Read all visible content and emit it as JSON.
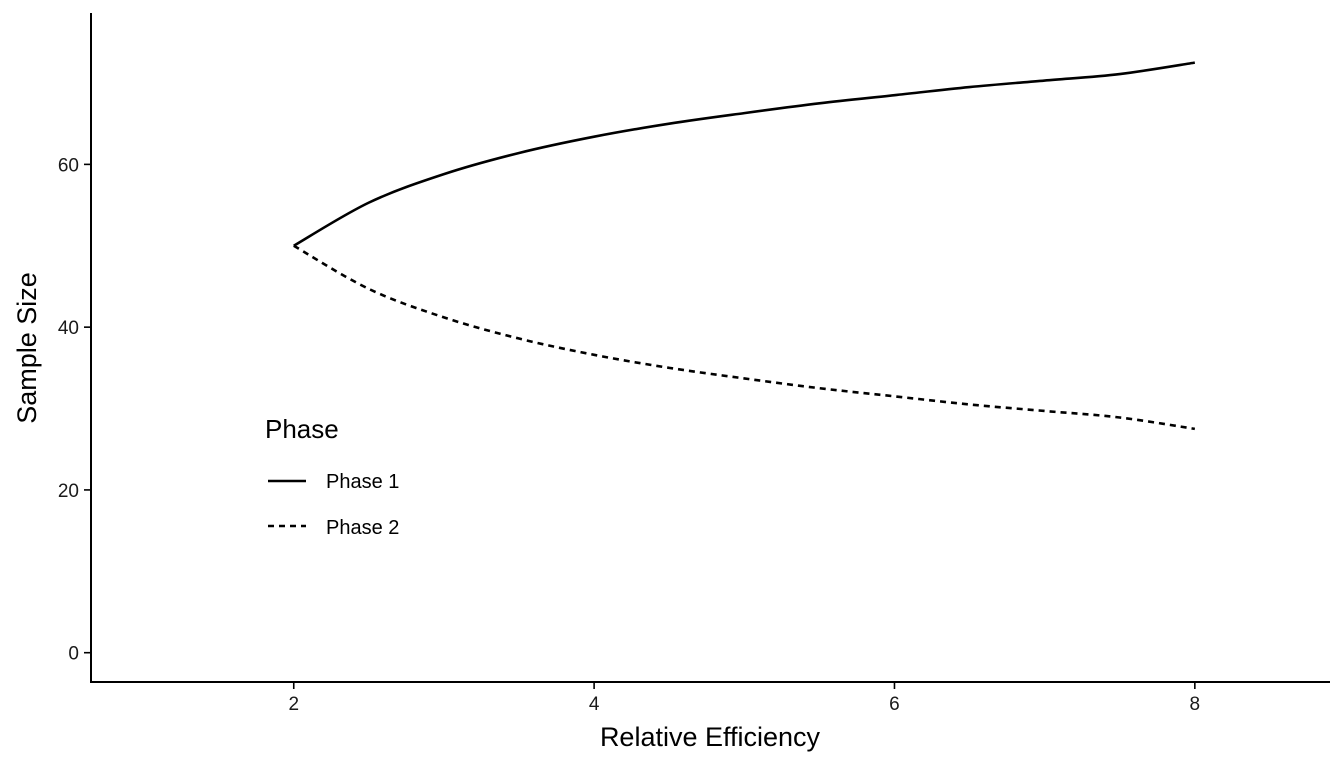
{
  "chart_data": {
    "type": "line",
    "xlabel": "Relative Efficiency",
    "ylabel": "Sample Size",
    "xlim": [
      0.65,
      8.9
    ],
    "ylim": [
      -3.6,
      78.6
    ],
    "x_ticks": [
      2,
      4,
      6,
      8
    ],
    "y_ticks": [
      0,
      20,
      40,
      60
    ],
    "x_tick_labels": [
      "2",
      "4",
      "6",
      "8"
    ],
    "y_tick_labels": [
      "0",
      "20",
      "40",
      "60"
    ],
    "grid": false,
    "legend": {
      "title": "Phase",
      "position": "inside-left",
      "entries": [
        {
          "label": "Phase 1",
          "linetype": "solid"
        },
        {
          "label": "Phase 2",
          "linetype": "dashed"
        }
      ]
    },
    "series": [
      {
        "name": "Phase 1",
        "linetype": "solid",
        "x": [
          2.0,
          2.5,
          3.0,
          3.5,
          4.0,
          4.5,
          5.0,
          5.5,
          6.0,
          6.5,
          7.0,
          7.5,
          8.0
        ],
        "y": [
          50.0,
          55.3,
          58.8,
          61.4,
          63.4,
          65.0,
          66.3,
          67.5,
          68.5,
          69.5,
          70.3,
          71.1,
          72.5
        ]
      },
      {
        "name": "Phase 2",
        "linetype": "dashed",
        "x": [
          2.0,
          2.5,
          3.0,
          3.5,
          4.0,
          4.5,
          5.0,
          5.5,
          6.0,
          6.5,
          7.0,
          7.5,
          8.0
        ],
        "y": [
          50.0,
          44.7,
          41.2,
          38.6,
          36.6,
          35.0,
          33.7,
          32.5,
          31.5,
          30.5,
          29.7,
          28.9,
          27.5
        ]
      }
    ]
  }
}
